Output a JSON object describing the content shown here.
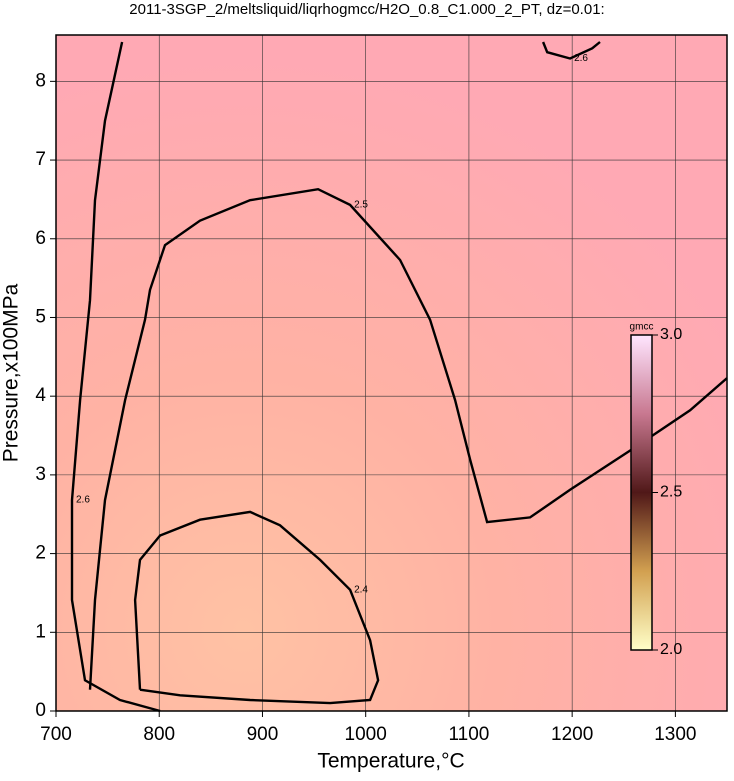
{
  "chart_data": {
    "type": "contour",
    "title": "2011-3SGP_2/meltsliquid/liqrhogmcc/H2O_0.8_C1.000_2_PT, dz=0.01:",
    "x_label": "Temperature,°C",
    "y_label": "Pressure,x100MPa",
    "xlim": [
      700,
      1350
    ],
    "ylim": [
      0,
      8.5
    ],
    "xticks": [
      700,
      800,
      900,
      1000,
      1100,
      1200,
      1300
    ],
    "yticks": [
      0,
      1,
      2,
      3,
      4,
      5,
      6,
      7,
      8
    ],
    "grid": true,
    "contours": [
      {
        "level": 2.4,
        "x": [
          781.4,
          776.6,
          781.4,
          800.8,
          839.5,
          888,
          917,
          955.8,
          984.9,
          1004.3,
          1012,
          1004.3,
          965.5,
          888,
          820.2,
          781.4
        ],
        "y": [
          0.27,
          1.41,
          1.92,
          2.23,
          2.43,
          2.53,
          2.36,
          1.92,
          1.54,
          0.9,
          0.39,
          0.14,
          0.1,
          0.14,
          0.2,
          0.27
        ]
      },
      {
        "level": 2.5,
        "x": [
          732.9,
          737.8,
          747.5,
          766.9,
          786.2,
          791.1,
          805.6,
          839.5,
          888,
          953.9,
          984.9,
          1033.3,
          1062.4,
          1086.6,
          1101.2,
          1117.6,
          1159.3,
          1198,
          1256.2,
          1314.3,
          1350
        ],
        "y": [
          0.27,
          1.41,
          2.68,
          3.95,
          4.97,
          5.35,
          5.92,
          6.23,
          6.49,
          6.63,
          6.43,
          5.73,
          4.97,
          3.95,
          3.19,
          2.4,
          2.46,
          2.81,
          3.31,
          3.82,
          4.23
        ]
      },
      {
        "level": 2.6,
        "x": [
          764,
          747.5,
          737.8,
          732.9,
          723.3,
          715.5,
          715.5,
          728.1,
          762,
          800.8
        ],
        "y": [
          8.5,
          7.5,
          6.49,
          5.22,
          3.95,
          2.68,
          1.41,
          0.39,
          0.14,
          0
        ]
      },
      {
        "level": 2.6,
        "x": [
          1171.9,
          1175.8,
          1198,
          1219.4,
          1227
        ],
        "y": [
          8.5,
          8.37,
          8.29,
          8.42,
          8.5
        ]
      }
    ],
    "colorbar": {
      "label": "gmcc",
      "lim": [
        2.0,
        3.0
      ],
      "ticks": [
        {
          "value": 2.0,
          "label": "2.0"
        },
        2.5,
        {
          "value": 3.0,
          "label": "3.0"
        }
      ]
    }
  }
}
